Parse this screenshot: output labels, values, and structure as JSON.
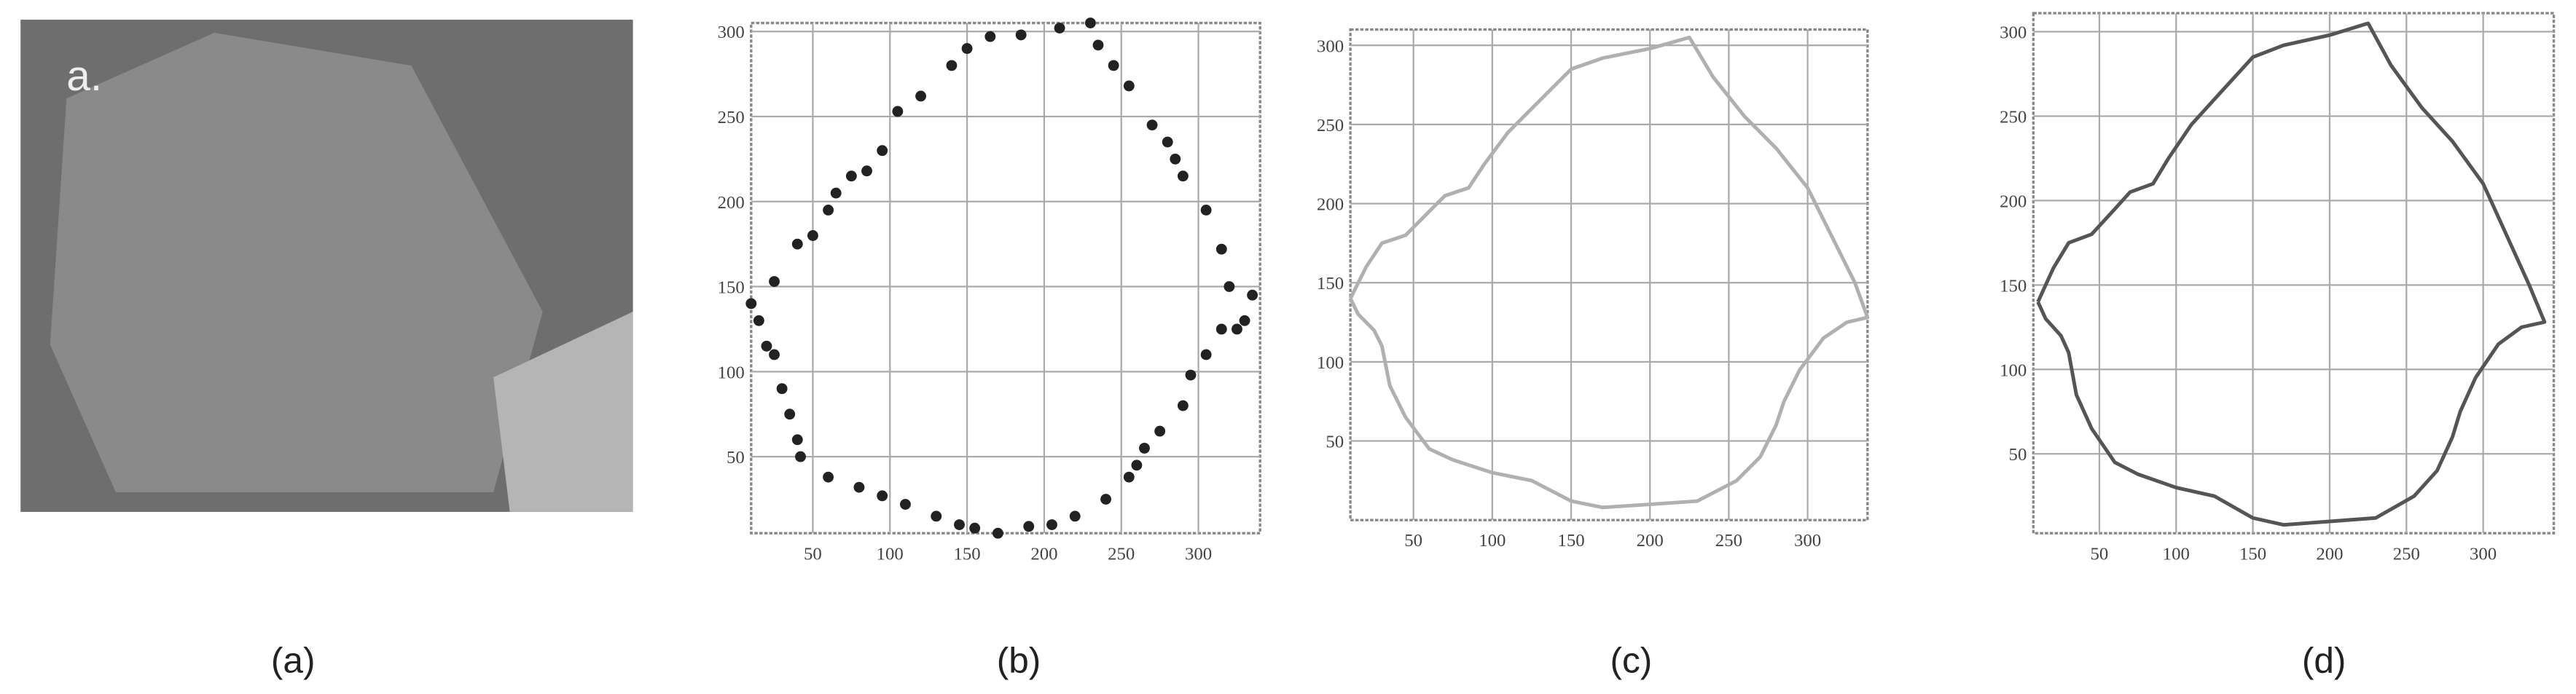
{
  "image": {
    "label": "a.",
    "caption": "(a)"
  },
  "chart_data": [
    {
      "type": "scatter",
      "caption": "(b)",
      "color": "#222222",
      "grid": true,
      "xlim": [
        10,
        340
      ],
      "ylim": [
        5,
        305
      ],
      "xticks": [
        50,
        100,
        150,
        200,
        250,
        300
      ],
      "yticks": [
        50,
        100,
        150,
        200,
        250,
        300
      ],
      "x": [
        10,
        15,
        20,
        25,
        30,
        35,
        40,
        42,
        60,
        80,
        95,
        110,
        130,
        145,
        155,
        170,
        190,
        205,
        220,
        240,
        255,
        260,
        265,
        275,
        290,
        295,
        305,
        315,
        325,
        330,
        335,
        320,
        315,
        305,
        290,
        285,
        280,
        270,
        255,
        245,
        235,
        230,
        210,
        185,
        165,
        150,
        140,
        120,
        105,
        95,
        85,
        75,
        65,
        60,
        50,
        40,
        25
      ],
      "values": [
        140,
        130,
        115,
        110,
        90,
        75,
        60,
        50,
        38,
        32,
        27,
        22,
        15,
        10,
        8,
        5,
        9,
        10,
        15,
        25,
        38,
        45,
        55,
        65,
        80,
        98,
        110,
        125,
        125,
        130,
        145,
        150,
        172,
        195,
        215,
        225,
        235,
        245,
        268,
        280,
        292,
        305,
        302,
        298,
        297,
        290,
        280,
        262,
        253,
        230,
        218,
        215,
        205,
        195,
        180,
        175,
        153
      ]
    },
    {
      "type": "line",
      "caption": "(c)",
      "color": "#b0b0b0",
      "grid": true,
      "xlim": [
        10,
        338
      ],
      "ylim": [
        0,
        310
      ],
      "xticks": [
        50,
        100,
        150,
        200,
        250,
        300
      ],
      "yticks": [
        50,
        100,
        150,
        200,
        250,
        300
      ],
      "x": [
        10,
        20,
        30,
        45,
        60,
        70,
        85,
        95,
        110,
        130,
        150,
        170,
        200,
        225,
        240,
        260,
        280,
        300,
        315,
        330,
        338,
        325,
        310,
        295,
        285,
        280,
        270,
        255,
        230,
        200,
        170,
        150,
        125,
        100,
        75,
        60,
        45,
        35,
        30,
        25,
        15,
        10
      ],
      "values": [
        140,
        160,
        175,
        180,
        195,
        205,
        210,
        225,
        245,
        265,
        285,
        292,
        298,
        305,
        280,
        255,
        235,
        210,
        180,
        150,
        128,
        125,
        115,
        95,
        75,
        60,
        40,
        25,
        12,
        10,
        8,
        12,
        25,
        30,
        38,
        45,
        65,
        85,
        110,
        120,
        130,
        140
      ]
    },
    {
      "type": "line",
      "caption": "(d)",
      "color": "#555555",
      "grid": true,
      "xlim": [
        7,
        346
      ],
      "ylim": [
        3,
        311
      ],
      "xticks": [
        50,
        100,
        150,
        200,
        250,
        300
      ],
      "yticks": [
        50,
        100,
        150,
        200,
        250,
        300
      ],
      "x": [
        10,
        20,
        30,
        45,
        60,
        70,
        85,
        95,
        110,
        130,
        150,
        170,
        200,
        225,
        240,
        260,
        280,
        300,
        315,
        330,
        340,
        325,
        310,
        295,
        285,
        280,
        270,
        255,
        230,
        200,
        170,
        150,
        125,
        100,
        75,
        60,
        45,
        35,
        30,
        25,
        15,
        10
      ],
      "values": [
        140,
        160,
        175,
        180,
        195,
        205,
        210,
        225,
        245,
        265,
        285,
        292,
        298,
        305,
        280,
        255,
        235,
        210,
        180,
        150,
        128,
        125,
        115,
        95,
        75,
        60,
        40,
        25,
        12,
        10,
        8,
        12,
        25,
        30,
        38,
        45,
        65,
        85,
        110,
        120,
        130,
        140
      ]
    }
  ]
}
